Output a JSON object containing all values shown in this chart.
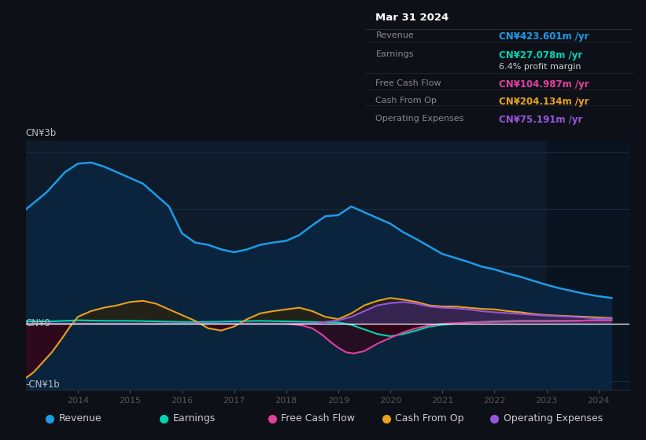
{
  "bg_color": "#0d1117",
  "plot_bg_color": "#0d1b2a",
  "title_box": {
    "date": "Mar 31 2024",
    "rows": [
      {
        "label": "Revenue",
        "value": "CN¥423.601m /yr",
        "value_color": "#1e9be8"
      },
      {
        "label": "Earnings",
        "value": "CN¥27.078m /yr",
        "value_color": "#00d4b4"
      },
      {
        "label": "",
        "value": "6.4% profit margin",
        "value_color": "#cccccc"
      },
      {
        "label": "Free Cash Flow",
        "value": "CN¥104.987m /yr",
        "value_color": "#e040a0"
      },
      {
        "label": "Cash From Op",
        "value": "CN¥204.134m /yr",
        "value_color": "#e8a020"
      },
      {
        "label": "Operating Expenses",
        "value": "CN¥75.191m /yr",
        "value_color": "#9955dd"
      }
    ]
  },
  "ylabel_top": "CN¥3b",
  "ylabel_zero": "CN¥0",
  "ylabel_bottom": "-CN¥1b",
  "xlim": [
    2013.0,
    2024.6
  ],
  "ylim": [
    -1.15,
    3.2
  ],
  "xticks": [
    2014,
    2015,
    2016,
    2017,
    2018,
    2019,
    2020,
    2021,
    2022,
    2023,
    2024
  ],
  "legend_items": [
    {
      "label": "Revenue",
      "color": "#1e9be8"
    },
    {
      "label": "Earnings",
      "color": "#00d4b4"
    },
    {
      "label": "Free Cash Flow",
      "color": "#e040a0"
    },
    {
      "label": "Cash From Op",
      "color": "#e8a020"
    },
    {
      "label": "Operating Expenses",
      "color": "#9955dd"
    }
  ],
  "revenue_x": [
    2013.0,
    2013.2,
    2013.4,
    2013.6,
    2013.75,
    2014.0,
    2014.25,
    2014.5,
    2014.75,
    2015.0,
    2015.25,
    2015.5,
    2015.75,
    2016.0,
    2016.25,
    2016.5,
    2016.75,
    2017.0,
    2017.25,
    2017.5,
    2017.75,
    2018.0,
    2018.25,
    2018.5,
    2018.75,
    2019.0,
    2019.25,
    2019.5,
    2019.75,
    2020.0,
    2020.25,
    2020.5,
    2020.75,
    2021.0,
    2021.25,
    2021.5,
    2021.75,
    2022.0,
    2022.25,
    2022.5,
    2022.75,
    2023.0,
    2023.25,
    2023.5,
    2023.75,
    2024.0,
    2024.25
  ],
  "revenue_y": [
    2.0,
    2.15,
    2.3,
    2.5,
    2.65,
    2.8,
    2.82,
    2.75,
    2.65,
    2.55,
    2.45,
    2.25,
    2.05,
    1.58,
    1.42,
    1.38,
    1.3,
    1.25,
    1.3,
    1.38,
    1.42,
    1.45,
    1.55,
    1.72,
    1.88,
    1.9,
    2.05,
    1.95,
    1.85,
    1.75,
    1.6,
    1.48,
    1.35,
    1.22,
    1.15,
    1.08,
    1.0,
    0.95,
    0.88,
    0.82,
    0.75,
    0.68,
    0.62,
    0.57,
    0.52,
    0.48,
    0.45
  ],
  "earnings_x": [
    2013.0,
    2013.5,
    2014.0,
    2014.5,
    2015.0,
    2015.5,
    2016.0,
    2016.5,
    2017.0,
    2017.5,
    2018.0,
    2018.5,
    2019.0,
    2019.25,
    2019.5,
    2019.75,
    2020.0,
    2020.25,
    2020.5,
    2020.75,
    2021.0,
    2021.5,
    2022.0,
    2022.5,
    2023.0,
    2023.5,
    2024.0,
    2024.25
  ],
  "earnings_y": [
    0.04,
    0.04,
    0.06,
    0.05,
    0.05,
    0.04,
    0.03,
    0.03,
    0.04,
    0.05,
    0.04,
    0.03,
    0.02,
    -0.02,
    -0.1,
    -0.18,
    -0.22,
    -0.18,
    -0.12,
    -0.05,
    -0.02,
    0.02,
    0.04,
    0.05,
    0.05,
    0.05,
    0.06,
    0.06
  ],
  "fcf_x": [
    2013.0,
    2013.5,
    2014.0,
    2014.5,
    2015.0,
    2015.5,
    2016.0,
    2016.5,
    2017.0,
    2017.5,
    2018.0,
    2018.3,
    2018.5,
    2018.7,
    2018.85,
    2019.0,
    2019.15,
    2019.3,
    2019.5,
    2019.75,
    2020.0,
    2020.25,
    2020.5,
    2020.75,
    2021.0,
    2021.5,
    2022.0,
    2022.5,
    2023.0,
    2023.5,
    2024.0,
    2024.25
  ],
  "fcf_y": [
    0.0,
    0.0,
    0.0,
    0.0,
    0.0,
    0.0,
    0.0,
    0.0,
    0.0,
    0.0,
    0.0,
    -0.03,
    -0.08,
    -0.2,
    -0.32,
    -0.42,
    -0.5,
    -0.52,
    -0.48,
    -0.35,
    -0.25,
    -0.15,
    -0.08,
    -0.03,
    0.0,
    0.02,
    0.03,
    0.04,
    0.04,
    0.05,
    0.06,
    0.06
  ],
  "cop_x": [
    2013.0,
    2013.15,
    2013.3,
    2013.5,
    2013.7,
    2013.85,
    2014.0,
    2014.25,
    2014.5,
    2014.75,
    2015.0,
    2015.25,
    2015.5,
    2015.75,
    2016.0,
    2016.25,
    2016.5,
    2016.75,
    2017.0,
    2017.25,
    2017.5,
    2017.75,
    2018.0,
    2018.25,
    2018.5,
    2018.75,
    2019.0,
    2019.25,
    2019.5,
    2019.75,
    2020.0,
    2020.25,
    2020.5,
    2020.75,
    2021.0,
    2021.25,
    2021.5,
    2021.75,
    2022.0,
    2022.25,
    2022.5,
    2022.75,
    2023.0,
    2023.25,
    2023.5,
    2023.75,
    2024.0,
    2024.25
  ],
  "cop_y": [
    -0.95,
    -0.85,
    -0.7,
    -0.5,
    -0.25,
    -0.05,
    0.12,
    0.22,
    0.28,
    0.32,
    0.38,
    0.4,
    0.35,
    0.25,
    0.15,
    0.05,
    -0.08,
    -0.12,
    -0.05,
    0.08,
    0.18,
    0.22,
    0.25,
    0.28,
    0.22,
    0.12,
    0.08,
    0.18,
    0.32,
    0.4,
    0.45,
    0.42,
    0.38,
    0.32,
    0.3,
    0.3,
    0.28,
    0.26,
    0.25,
    0.22,
    0.2,
    0.17,
    0.15,
    0.14,
    0.13,
    0.12,
    0.11,
    0.1
  ],
  "opex_x": [
    2013.0,
    2013.5,
    2014.0,
    2014.5,
    2015.0,
    2015.5,
    2016.0,
    2016.5,
    2017.0,
    2017.5,
    2018.0,
    2018.5,
    2019.0,
    2019.25,
    2019.5,
    2019.75,
    2020.0,
    2020.25,
    2020.5,
    2020.75,
    2021.0,
    2021.25,
    2021.5,
    2021.75,
    2022.0,
    2022.5,
    2023.0,
    2023.5,
    2024.0,
    2024.25
  ],
  "opex_y": [
    0.0,
    0.0,
    0.0,
    0.0,
    0.0,
    0.0,
    0.0,
    0.0,
    0.0,
    0.0,
    0.0,
    0.0,
    0.06,
    0.12,
    0.22,
    0.32,
    0.36,
    0.38,
    0.35,
    0.3,
    0.28,
    0.27,
    0.25,
    0.22,
    0.2,
    0.17,
    0.14,
    0.12,
    0.09,
    0.09
  ]
}
